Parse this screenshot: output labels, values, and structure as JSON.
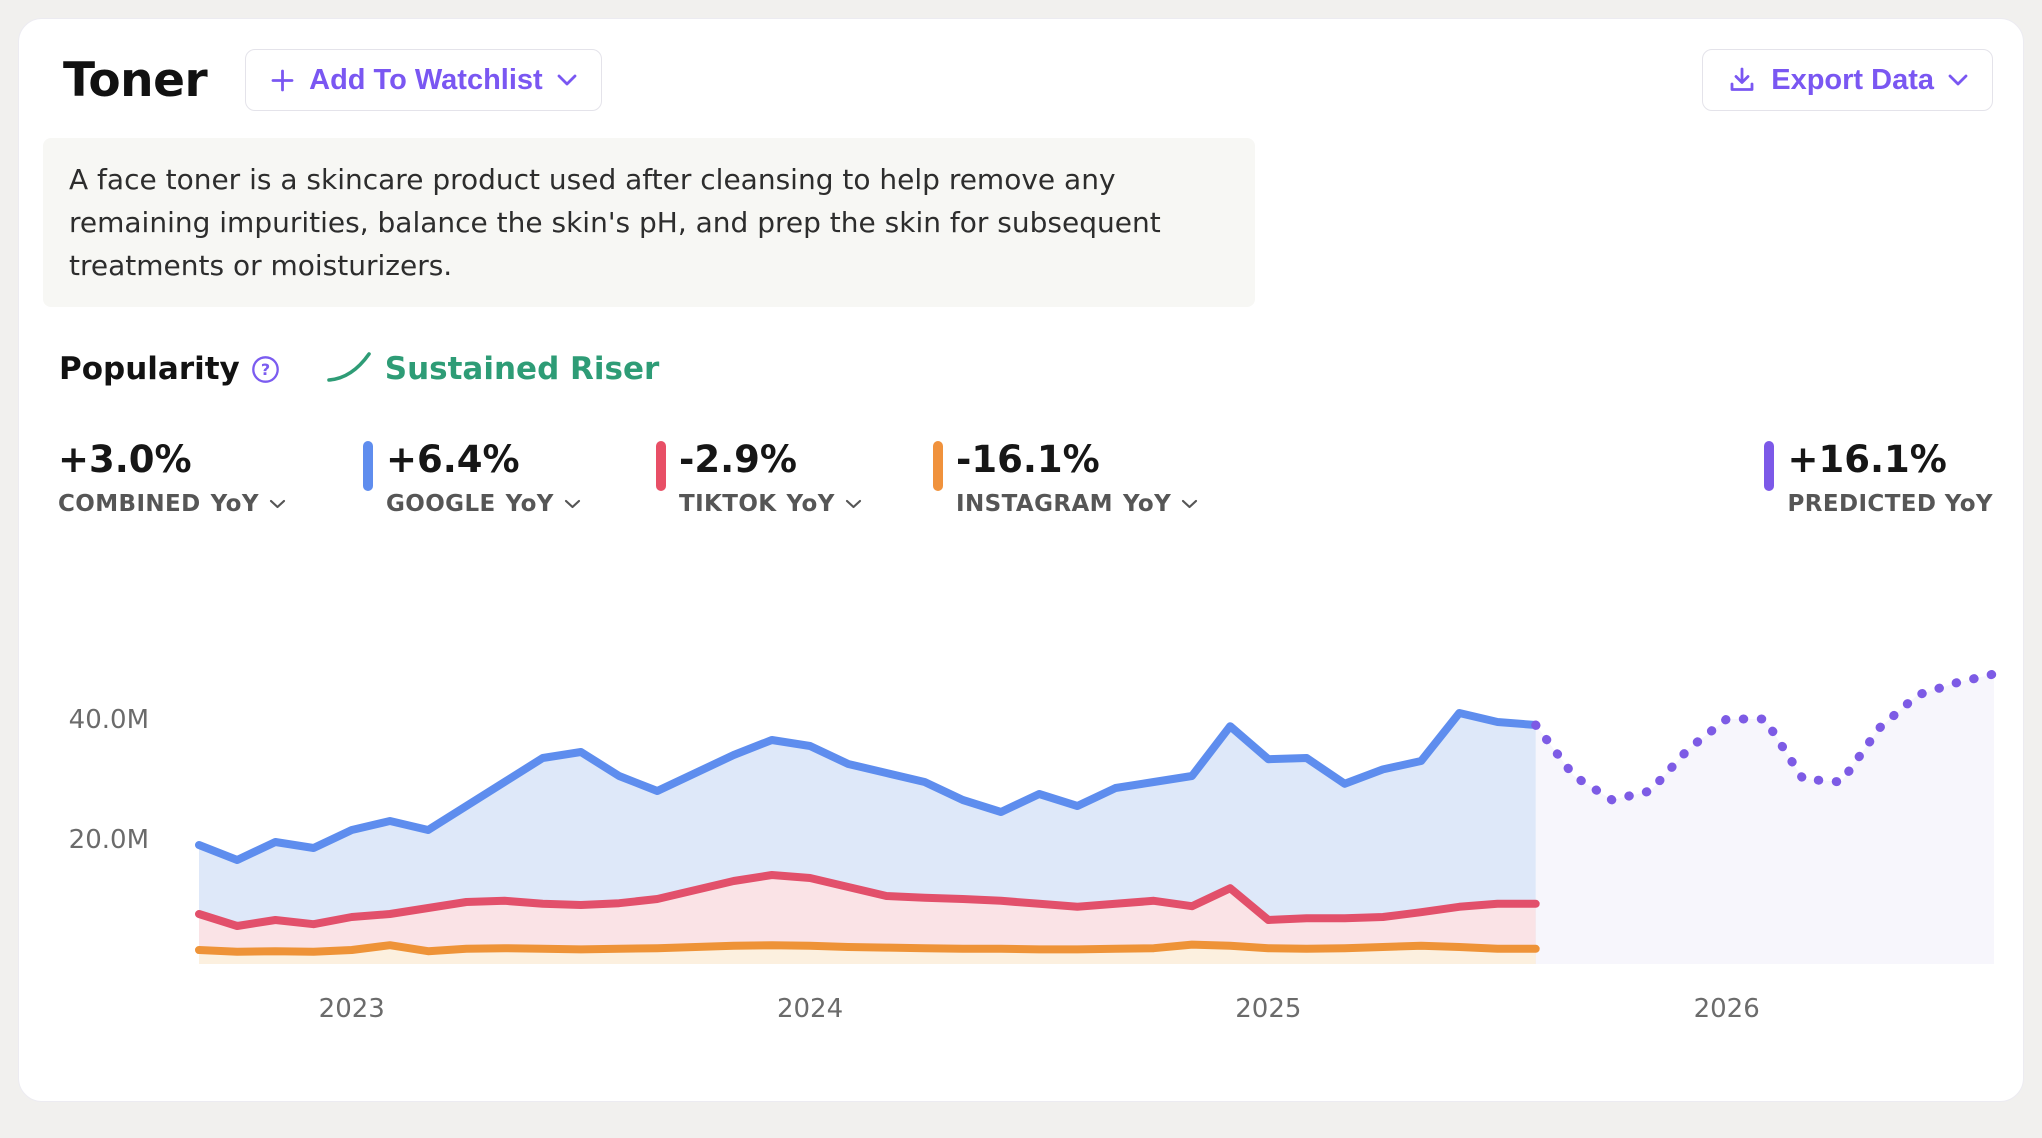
{
  "header": {
    "title": "Toner",
    "watchlist_label": "Add To Watchlist",
    "export_label": "Export Data"
  },
  "description": {
    "text": "A face toner is a skincare product used after cleansing to help remove any remaining impurities, balance the skin's pH, and prep the skin for subsequent treatments or moisturizers."
  },
  "popularity": {
    "title": "Popularity",
    "badge": "Sustained Riser",
    "badge_color": "#2e9c76"
  },
  "accent_color": "#7a57f2",
  "stats": [
    {
      "value": "+3.0%",
      "label": "COMBINED",
      "period": "YoY",
      "bar_color": null,
      "has_dropdown": true
    },
    {
      "value": "+6.4%",
      "label": "GOOGLE",
      "period": "YoY",
      "bar_color": "#5f8dee",
      "has_dropdown": true
    },
    {
      "value": "-2.9%",
      "label": "TIKTOK",
      "period": "YoY",
      "bar_color": "#e84f66",
      "has_dropdown": true
    },
    {
      "value": "-16.1%",
      "label": "INSTAGRAM",
      "period": "YoY",
      "bar_color": "#f0923c",
      "has_dropdown": true
    },
    {
      "value": "+16.1%",
      "label": "PREDICTED YoY",
      "period": "",
      "bar_color": "#7c59e8",
      "has_dropdown": false
    }
  ],
  "chart_data": {
    "type": "area",
    "title": "Popularity over time",
    "x_unit": "month",
    "x_start_month": "2022-09",
    "months_total": 48,
    "history_end_index": 35,
    "grid": false,
    "legend": "none",
    "y_unit": "M",
    "ylim": [
      0,
      50
    ],
    "y_ticks": [
      {
        "label": "20.0M",
        "value": 20
      },
      {
        "label": "40.0M",
        "value": 40
      }
    ],
    "x_ticks": [
      {
        "label": "2023",
        "index": 4
      },
      {
        "label": "2024",
        "index": 16
      },
      {
        "label": "2025",
        "index": 28
      },
      {
        "label": "2026",
        "index": 40
      }
    ],
    "series": [
      {
        "name": "Google",
        "color": "#5e8dee",
        "fill": "#dee8f9",
        "values": [
          19,
          16.5,
          19.5,
          18.5,
          21.5,
          23,
          21.5,
          25.5,
          29.5,
          33.5,
          34.5,
          30.5,
          28,
          31,
          34,
          36.5,
          35.5,
          32.5,
          31,
          29.5,
          26.5,
          24.5,
          27.5,
          25.5,
          28.5,
          29.5,
          30.5,
          38.8,
          33.3,
          33.5,
          29.2,
          31.6,
          33,
          41,
          39.5,
          39
        ]
      },
      {
        "name": "TikTok",
        "color": "#e2506b",
        "fill": "#fae3e6",
        "values": [
          7.5,
          5.5,
          6.5,
          5.8,
          7,
          7.5,
          8.5,
          9.5,
          9.7,
          9.2,
          9,
          9.3,
          10,
          11.5,
          13,
          14,
          13.5,
          12,
          10.5,
          10.2,
          10,
          9.7,
          9.2,
          8.7,
          9.2,
          9.7,
          8.8,
          11.8,
          6.5,
          6.8,
          6.8,
          7,
          7.8,
          8.7,
          9.2,
          9.2
        ]
      },
      {
        "name": "Instagram",
        "color": "#ee9338",
        "fill": "#fcf0df",
        "values": [
          1.5,
          1.2,
          1.3,
          1.2,
          1.5,
          2.3,
          1.3,
          1.7,
          1.8,
          1.7,
          1.6,
          1.7,
          1.8,
          2,
          2.2,
          2.3,
          2.2,
          2,
          1.9,
          1.8,
          1.7,
          1.7,
          1.6,
          1.6,
          1.7,
          1.8,
          2.4,
          2.2,
          1.8,
          1.7,
          1.8,
          2,
          2.2,
          2,
          1.7,
          1.7
        ]
      }
    ],
    "predicted": {
      "name": "Predicted",
      "style": "dotted",
      "color": "#7d5be5",
      "region_fill": "#f7f6fc",
      "start_index": 35,
      "values": [
        39,
        30.5,
        26.5,
        28,
        35,
        40,
        40,
        30,
        29.5,
        38.5,
        44,
        46,
        47.5
      ]
    }
  }
}
